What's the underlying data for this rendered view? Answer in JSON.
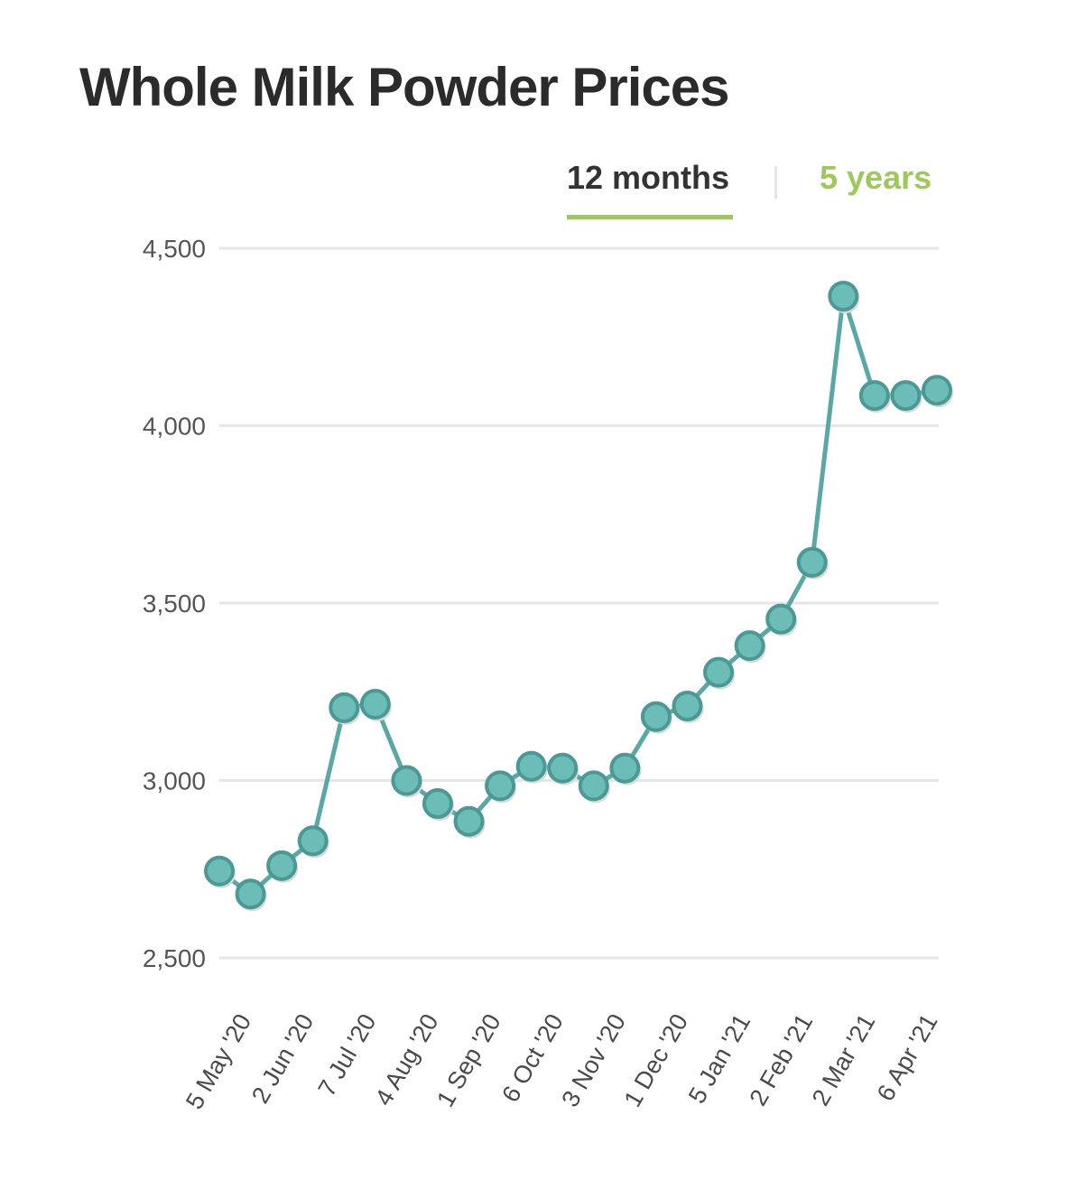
{
  "chart_data": {
    "type": "line",
    "title": "Whole Milk Powder Prices",
    "xlabel": "",
    "ylabel": "",
    "ylim": [
      2500,
      4500
    ],
    "yticks": [
      2500,
      3000,
      3500,
      4000,
      4500
    ],
    "ytick_labels": [
      "2,500",
      "3,000",
      "3,500",
      "4,000",
      "4,500"
    ],
    "x_tick_labels": [
      "5 May '20",
      "2 Jun '20",
      "7 Jul '20",
      "4 Aug '20",
      "1 Sep '20",
      "6 Oct '20",
      "3 Nov '20",
      "1 Dec '20",
      "5 Jan '21",
      "2 Feb '21",
      "2 Mar '21",
      "6 Apr '21"
    ],
    "x_tick_index": [
      0,
      2,
      4,
      6,
      8,
      10,
      12,
      14,
      16,
      18,
      20,
      22
    ],
    "grid": true,
    "legend": "none",
    "colors": {
      "line": "#5aa8a5",
      "point": "#6cbcb8",
      "point_stroke": "#4a9995",
      "grid": "#e6e6e6"
    },
    "series": [
      {
        "values": [
          2745,
          2680,
          2760,
          2830,
          3205,
          3215,
          3000,
          2935,
          2885,
          2985,
          3040,
          3035,
          2985,
          3035,
          3180,
          3210,
          3305,
          3380,
          3455,
          3615,
          4365,
          4085,
          4085,
          4100
        ]
      }
    ]
  },
  "tabs": {
    "active": "12 months",
    "other": "5 years",
    "active_color": "#9cc95a"
  }
}
